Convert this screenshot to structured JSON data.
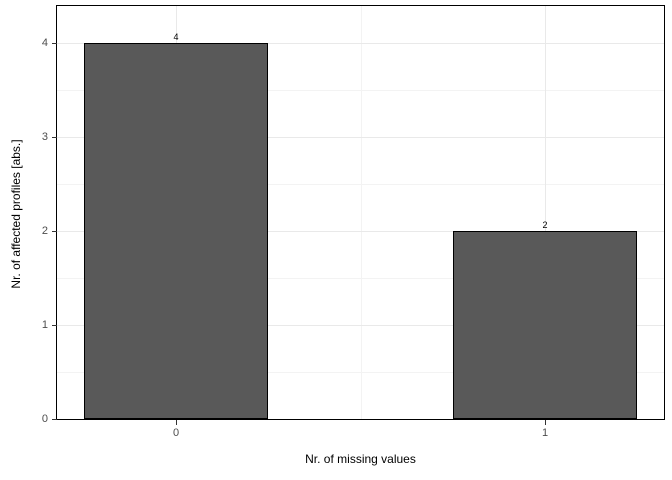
{
  "figure": {
    "background": "#ffffff",
    "title": ""
  },
  "chart_data": {
    "type": "bar",
    "categories": [
      "0",
      "1"
    ],
    "x": [
      0,
      1
    ],
    "values": [
      4,
      2
    ],
    "bar_labels": [
      "4",
      "2"
    ],
    "title": "",
    "xlabel": "Nr. of missing values",
    "ylabel": "Nr. of affected profiles [abs.]",
    "xlim": [
      -0.3225,
      1.3225
    ],
    "ylim": [
      0,
      4.394
    ],
    "bar_width": 0.5,
    "xticks": {
      "values": [
        0,
        1
      ],
      "labels": [
        "0",
        "1"
      ]
    },
    "yticks": {
      "values": [
        0,
        1,
        2,
        3,
        4
      ],
      "labels": [
        "0",
        "1",
        "2",
        "3",
        "4"
      ]
    },
    "x_minor": [
      0.5
    ],
    "y_minor": [
      0.5,
      1.5,
      2.5,
      3.5
    ],
    "grid": "major+minor",
    "legend": "none",
    "colors": {
      "bar_fill": "#595959",
      "bar_border": "#000000",
      "panel_border": "#000000",
      "panel_bg": "#ffffff",
      "grid_major": "#e9e9e9",
      "grid_minor": "#f3f3f3",
      "tick": "#333333",
      "tick_label": "#4d4d4d",
      "axis_title": "#000000",
      "value_label": "#000000"
    }
  }
}
